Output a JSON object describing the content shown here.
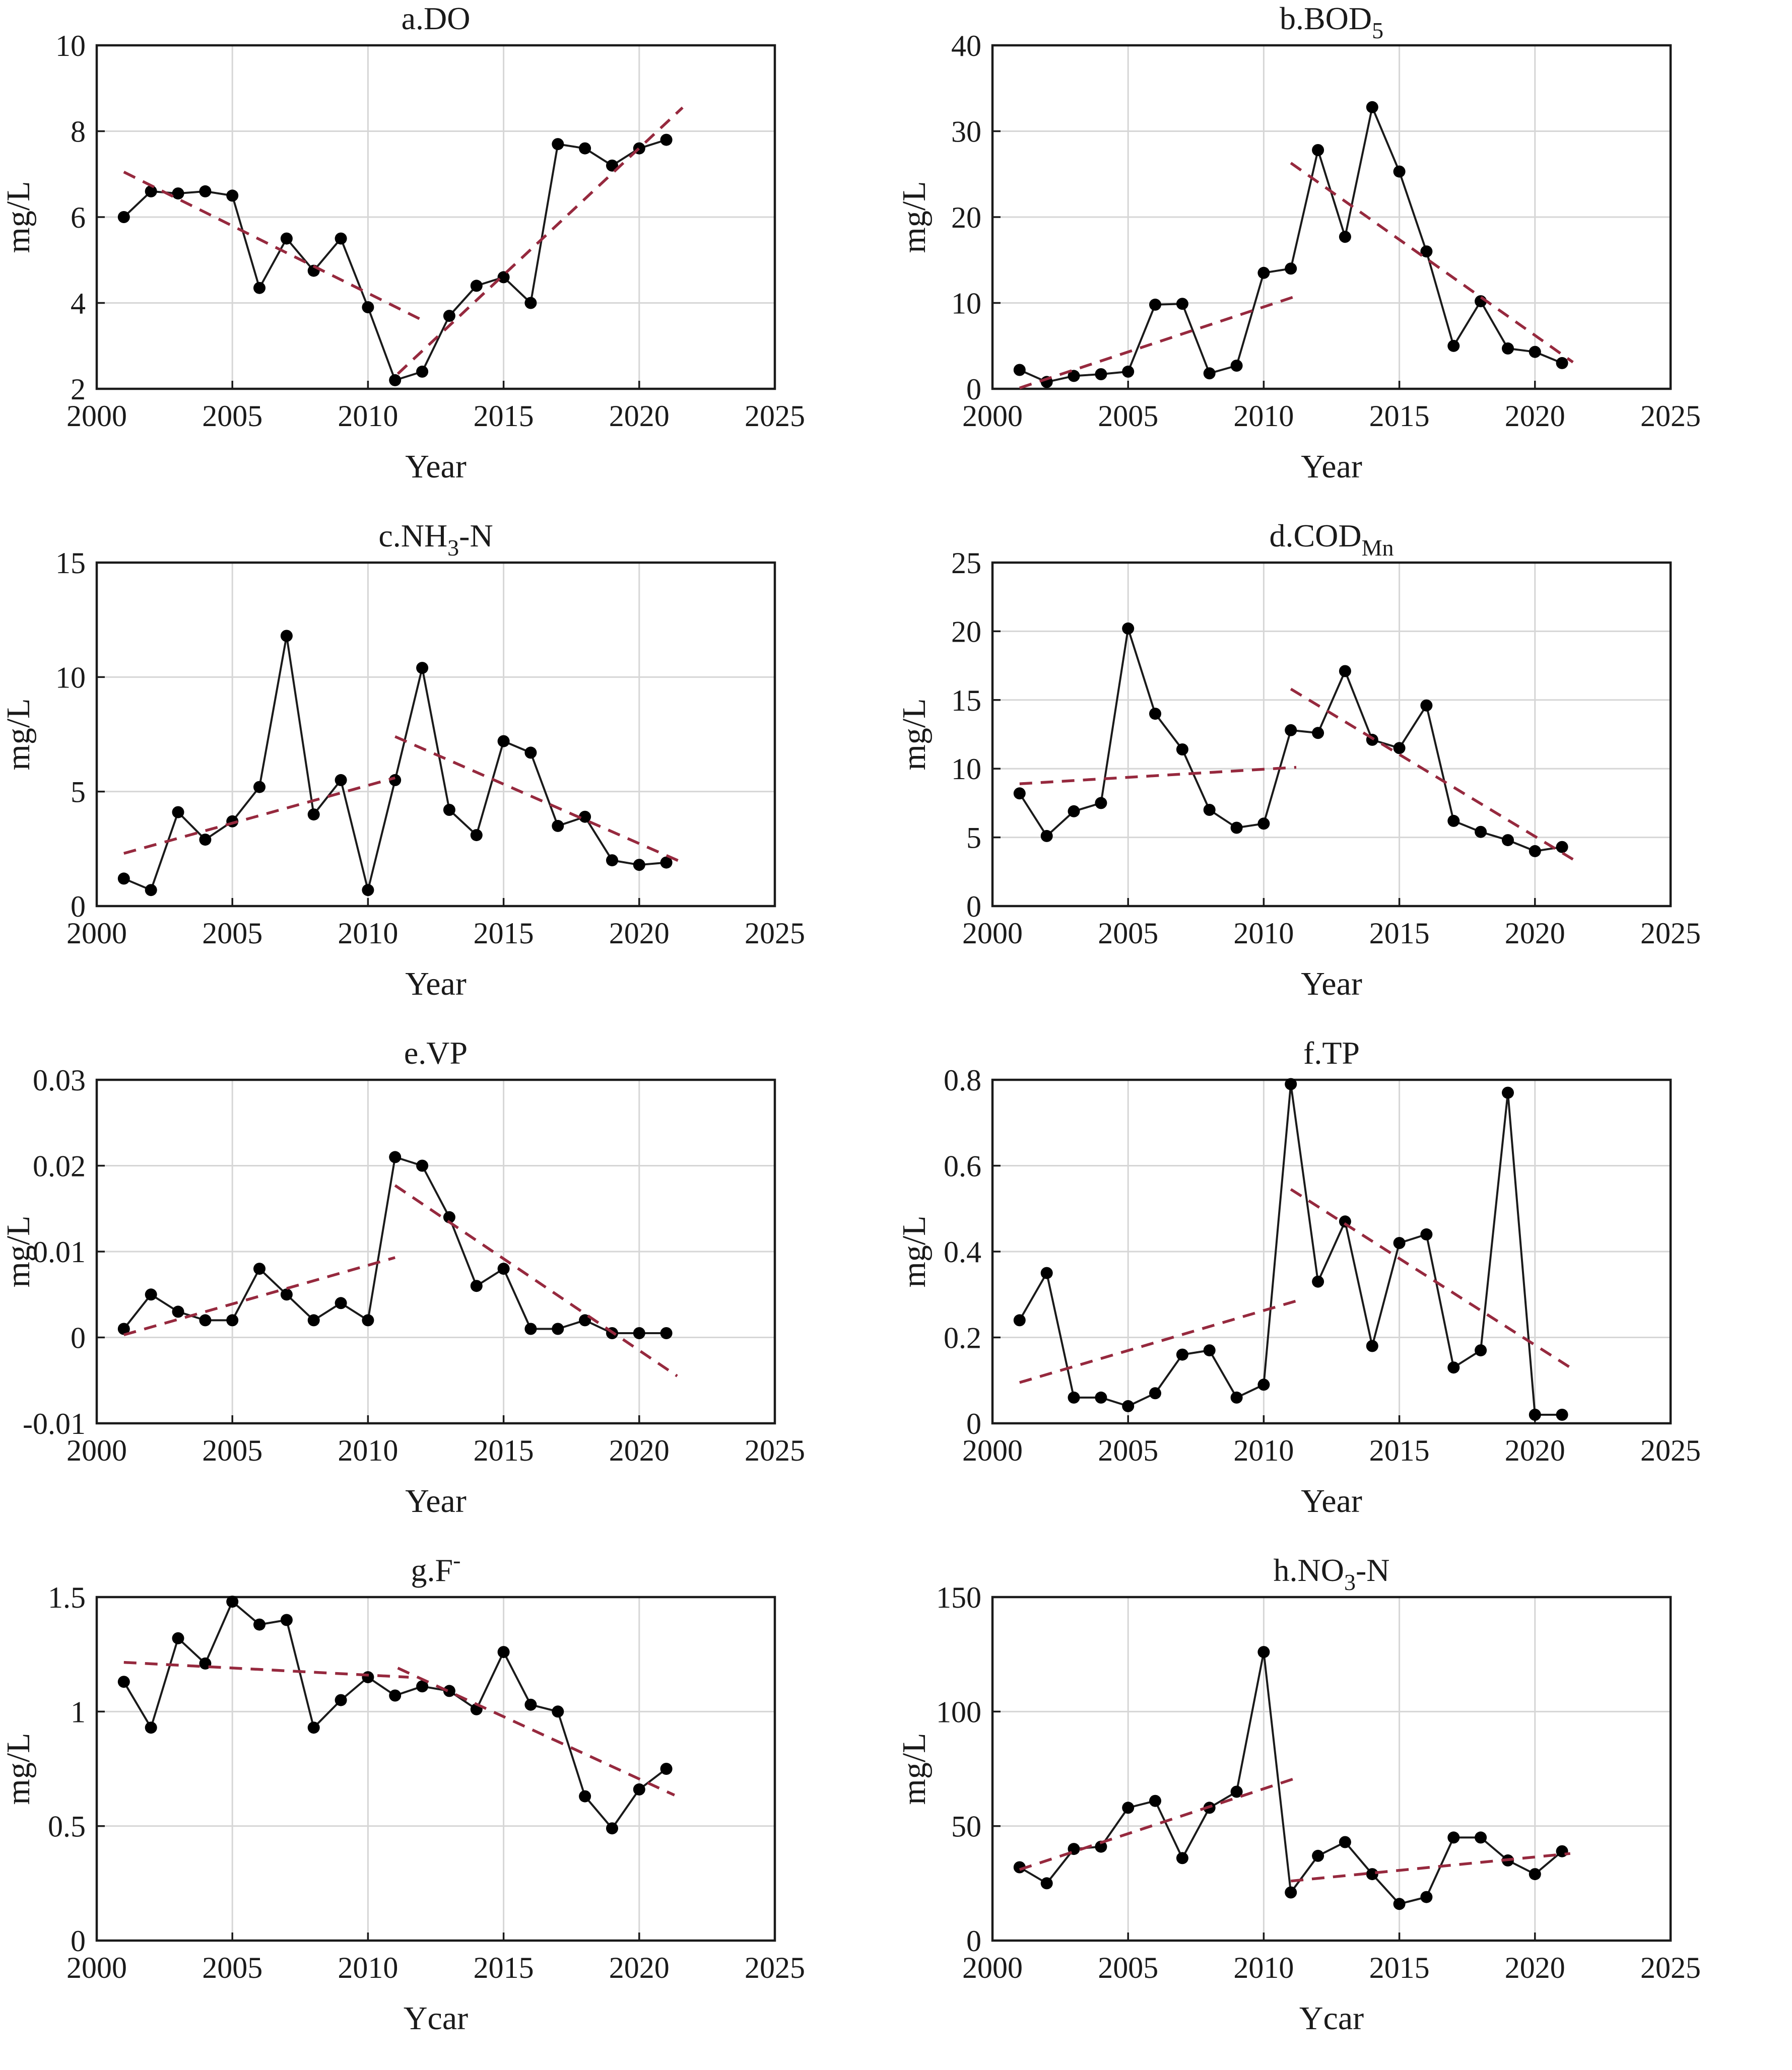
{
  "figure": {
    "description": "Eight water-quality time series panels, annual values 2001-2021 with piecewise linear trend lines",
    "x_axis_label_default": "Year",
    "y_axis_label": "mg/L",
    "colors": {
      "series_line": "#1a1a1a",
      "marker": "#000000",
      "trend_dashed": "#96293e",
      "gridline": "#d6d6d6",
      "axis_box": "#1a1a1a",
      "background": "#ffffff"
    }
  },
  "chart_data": [
    {
      "type": "line",
      "panel": "a",
      "title": {
        "main": "a.DO",
        "sub": "",
        "post": "",
        "sup": ""
      },
      "xlabel": "Year",
      "ylabel": "mg/L",
      "xlim": [
        2000,
        2025
      ],
      "xticks": [
        2000,
        2005,
        2010,
        2015,
        2020,
        2025
      ],
      "ylim": [
        2,
        10
      ],
      "ytick_vals": [
        2,
        4,
        6,
        8,
        10
      ],
      "ytick_labels": [
        "2",
        "4",
        "6",
        "8",
        "10"
      ],
      "x": [
        2001,
        2002,
        2003,
        2004,
        2005,
        2006,
        2007,
        2008,
        2009,
        2010,
        2011,
        2012,
        2013,
        2014,
        2015,
        2016,
        2017,
        2018,
        2019,
        2020,
        2021
      ],
      "values": [
        6.0,
        6.6,
        6.55,
        6.6,
        6.5,
        4.35,
        5.5,
        4.75,
        5.5,
        3.9,
        2.2,
        2.4,
        3.7,
        4.4,
        4.6,
        4.0,
        7.7,
        7.6,
        7.2,
        7.6,
        7.8
      ],
      "trends": [
        {
          "x1": 2001,
          "y1": 7.05,
          "x2": 2012,
          "y2": 3.6
        },
        {
          "x1": 2011.1,
          "y1": 2.35,
          "x2": 2021.6,
          "y2": 8.55
        }
      ]
    },
    {
      "type": "line",
      "panel": "b",
      "title": {
        "main": "b.BOD",
        "sub": "5",
        "post": "",
        "sup": ""
      },
      "xlabel": "Year",
      "ylabel": "mg/L",
      "xlim": [
        2000,
        2025
      ],
      "xticks": [
        2000,
        2005,
        2010,
        2015,
        2020,
        2025
      ],
      "ylim": [
        0,
        40
      ],
      "ytick_vals": [
        0,
        10,
        20,
        30,
        40
      ],
      "ytick_labels": [
        "0",
        "10",
        "20",
        "30",
        "40"
      ],
      "x": [
        2001,
        2002,
        2003,
        2004,
        2005,
        2006,
        2007,
        2008,
        2009,
        2010,
        2011,
        2012,
        2013,
        2014,
        2015,
        2016,
        2017,
        2018,
        2019,
        2020,
        2021
      ],
      "values": [
        2.2,
        0.8,
        1.5,
        1.7,
        2.0,
        9.8,
        9.9,
        1.8,
        2.7,
        13.5,
        14.0,
        27.8,
        17.7,
        32.8,
        25.3,
        16.0,
        5.0,
        10.2,
        4.7,
        4.3,
        3.0
      ],
      "trends": [
        {
          "x1": 2001,
          "y1": 0.1,
          "x2": 2011.2,
          "y2": 10.8
        },
        {
          "x1": 2011,
          "y1": 26.3,
          "x2": 2021.4,
          "y2": 3.1
        }
      ]
    },
    {
      "type": "line",
      "panel": "c",
      "title": {
        "main": "c.NH",
        "sub": "3",
        "post": "-N",
        "sup": ""
      },
      "xlabel": "Year",
      "ylabel": "mg/L",
      "xlim": [
        2000,
        2025
      ],
      "xticks": [
        2000,
        2005,
        2010,
        2015,
        2020,
        2025
      ],
      "ylim": [
        0,
        15
      ],
      "ytick_vals": [
        0,
        5,
        10,
        15
      ],
      "ytick_labels": [
        "0",
        "5",
        "10",
        "15"
      ],
      "x": [
        2001,
        2002,
        2003,
        2004,
        2005,
        2006,
        2007,
        2008,
        2009,
        2010,
        2011,
        2012,
        2013,
        2014,
        2015,
        2016,
        2017,
        2018,
        2019,
        2020,
        2021
      ],
      "values": [
        1.2,
        0.7,
        4.1,
        2.9,
        3.7,
        5.2,
        11.8,
        4.0,
        5.5,
        0.7,
        5.5,
        10.4,
        4.2,
        3.1,
        7.2,
        6.7,
        3.5,
        3.9,
        2.0,
        1.8,
        1.9
      ],
      "trends": [
        {
          "x1": 2001,
          "y1": 2.3,
          "x2": 2011,
          "y2": 5.6
        },
        {
          "x1": 2011,
          "y1": 7.4,
          "x2": 2021.5,
          "y2": 1.95
        }
      ]
    },
    {
      "type": "line",
      "panel": "d",
      "title": {
        "main": "d.COD",
        "sub": "Mn",
        "post": "",
        "sup": ""
      },
      "xlabel": "Year",
      "ylabel": "mg/L",
      "xlim": [
        2000,
        2025
      ],
      "xticks": [
        2000,
        2005,
        2010,
        2015,
        2020,
        2025
      ],
      "ylim": [
        0,
        25
      ],
      "ytick_vals": [
        0,
        5,
        10,
        15,
        20,
        25
      ],
      "ytick_labels": [
        "0",
        "5",
        "10",
        "15",
        "20",
        "25"
      ],
      "x": [
        2001,
        2002,
        2003,
        2004,
        2005,
        2006,
        2007,
        2008,
        2009,
        2010,
        2011,
        2012,
        2013,
        2014,
        2015,
        2016,
        2017,
        2018,
        2019,
        2020,
        2021
      ],
      "values": [
        8.2,
        5.1,
        6.9,
        7.5,
        20.2,
        14.0,
        11.4,
        7.0,
        5.7,
        6.0,
        12.8,
        12.6,
        17.1,
        12.1,
        11.5,
        14.6,
        6.2,
        5.4,
        4.8,
        4.0,
        4.3
      ],
      "trends": [
        {
          "x1": 2001,
          "y1": 8.9,
          "x2": 2011.2,
          "y2": 10.1
        },
        {
          "x1": 2011,
          "y1": 15.8,
          "x2": 2021.4,
          "y2": 3.4
        }
      ]
    },
    {
      "type": "line",
      "panel": "e",
      "title": {
        "main": "e.VP",
        "sub": "",
        "post": "",
        "sup": ""
      },
      "xlabel": "Year",
      "ylabel": "mg/L",
      "xlim": [
        2000,
        2025
      ],
      "xticks": [
        2000,
        2005,
        2010,
        2015,
        2020,
        2025
      ],
      "ylim": [
        -0.01,
        0.03
      ],
      "ytick_vals": [
        -0.01,
        0,
        0.01,
        0.02,
        0.03
      ],
      "ytick_labels": [
        "-0.01",
        "0",
        "0.01",
        "0.02",
        "0.03"
      ],
      "x": [
        2001,
        2002,
        2003,
        2004,
        2005,
        2006,
        2007,
        2008,
        2009,
        2010,
        2011,
        2012,
        2013,
        2014,
        2015,
        2016,
        2017,
        2018,
        2019,
        2020,
        2021
      ],
      "values": [
        0.001,
        0.005,
        0.003,
        0.002,
        0.002,
        0.008,
        0.005,
        0.002,
        0.004,
        0.002,
        0.021,
        0.02,
        0.014,
        0.006,
        0.008,
        0.001,
        0.001,
        0.002,
        0.0005,
        0.0005,
        0.0005
      ],
      "trends": [
        {
          "x1": 2001,
          "y1": 0.0003,
          "x2": 2011,
          "y2": 0.0093
        },
        {
          "x1": 2011,
          "y1": 0.0177,
          "x2": 2021.4,
          "y2": -0.0045
        }
      ]
    },
    {
      "type": "line",
      "panel": "f",
      "title": {
        "main": "f.TP",
        "sub": "",
        "post": "",
        "sup": ""
      },
      "xlabel": "Year",
      "ylabel": "mg/L",
      "xlim": [
        2000,
        2025
      ],
      "xticks": [
        2000,
        2005,
        2010,
        2015,
        2020,
        2025
      ],
      "ylim": [
        0,
        0.8
      ],
      "ytick_vals": [
        0,
        0.2,
        0.4,
        0.6,
        0.8
      ],
      "ytick_labels": [
        "0",
        "0.2",
        "0.4",
        "0.6",
        "0.8"
      ],
      "x": [
        2001,
        2002,
        2003,
        2004,
        2005,
        2006,
        2007,
        2008,
        2009,
        2010,
        2011,
        2012,
        2013,
        2014,
        2015,
        2016,
        2017,
        2018,
        2019,
        2020,
        2021
      ],
      "values": [
        0.24,
        0.35,
        0.06,
        0.06,
        0.04,
        0.07,
        0.16,
        0.17,
        0.06,
        0.09,
        0.79,
        0.33,
        0.47,
        0.18,
        0.42,
        0.44,
        0.13,
        0.17,
        0.77,
        0.02,
        0.02
      ],
      "trends": [
        {
          "x1": 2001,
          "y1": 0.095,
          "x2": 2011.2,
          "y2": 0.285
        },
        {
          "x1": 2011,
          "y1": 0.545,
          "x2": 2021.3,
          "y2": 0.13
        }
      ]
    },
    {
      "type": "line",
      "panel": "g",
      "title": {
        "main": "g.F",
        "sub": "",
        "post": "",
        "sup": "-"
      },
      "xlabel": "Ycar",
      "ylabel": "mg/L",
      "xlim": [
        2000,
        2025
      ],
      "xticks": [
        2000,
        2005,
        2010,
        2015,
        2020,
        2025
      ],
      "ylim": [
        0,
        1.5
      ],
      "ytick_vals": [
        0,
        0.5,
        1,
        1.5
      ],
      "ytick_labels": [
        "0",
        "0.5",
        "1",
        "1.5"
      ],
      "x": [
        2001,
        2002,
        2003,
        2004,
        2005,
        2006,
        2007,
        2008,
        2009,
        2010,
        2011,
        2012,
        2013,
        2014,
        2015,
        2016,
        2017,
        2018,
        2019,
        2020,
        2021
      ],
      "values": [
        1.13,
        0.93,
        1.32,
        1.21,
        1.48,
        1.38,
        1.4,
        0.93,
        1.05,
        1.15,
        1.07,
        1.11,
        1.09,
        1.01,
        1.26,
        1.03,
        1.0,
        0.63,
        0.49,
        0.66,
        0.75
      ],
      "trends": [
        {
          "x1": 2001,
          "y1": 1.215,
          "x2": 2011.5,
          "y2": 1.15
        },
        {
          "x1": 2011.1,
          "y1": 1.19,
          "x2": 2021.3,
          "y2": 0.635
        }
      ]
    },
    {
      "type": "line",
      "panel": "h",
      "title": {
        "main": "h.NO",
        "sub": "3",
        "post": "-N",
        "sup": ""
      },
      "xlabel": "Ycar",
      "ylabel": "mg/L",
      "xlim": [
        2000,
        2025
      ],
      "xticks": [
        2000,
        2005,
        2010,
        2015,
        2020,
        2025
      ],
      "ylim": [
        0,
        150
      ],
      "ytick_vals": [
        0,
        50,
        100,
        150
      ],
      "ytick_labels": [
        "0",
        "50",
        "100",
        "150"
      ],
      "x": [
        2001,
        2002,
        2003,
        2004,
        2005,
        2006,
        2007,
        2008,
        2009,
        2010,
        2011,
        2012,
        2013,
        2014,
        2015,
        2016,
        2017,
        2018,
        2019,
        2020,
        2021
      ],
      "values": [
        32,
        25,
        40,
        41,
        58,
        61,
        36,
        58,
        65,
        126,
        21,
        37,
        43,
        29,
        16,
        19,
        45,
        45,
        35,
        29,
        39
      ],
      "trends": [
        {
          "x1": 2001,
          "y1": 31,
          "x2": 2011.2,
          "y2": 71
        },
        {
          "x1": 2011,
          "y1": 26,
          "x2": 2021.3,
          "y2": 38
        }
      ]
    }
  ]
}
